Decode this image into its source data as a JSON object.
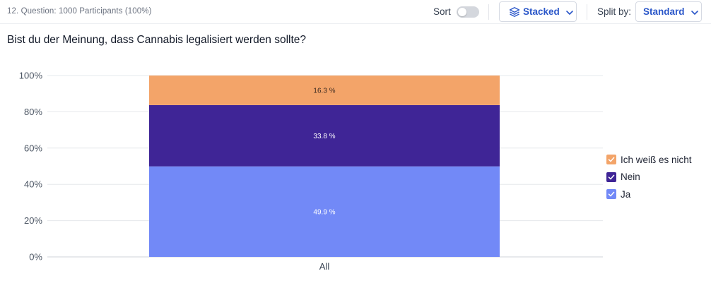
{
  "header": {
    "meta": "12. Question: 1000 Participants (100%)",
    "sort_label": "Sort",
    "chart_type_label": "Stacked",
    "split_by_label": "Split by:",
    "split_by_value": "Standard"
  },
  "colors": {
    "ich_weiss_es_nicht": "#f3a469",
    "nein": "#3f2596",
    "ja": "#7289f7",
    "accent": "#2b57c9"
  },
  "chart_data": {
    "type": "bar",
    "stacked": true,
    "title": "Bist du der Meinung, dass Cannabis legalisiert werden sollte?",
    "categories": [
      "All"
    ],
    "series": [
      {
        "name": "Ja",
        "values": [
          49.9
        ],
        "color": "#7289f7"
      },
      {
        "name": "Nein",
        "values": [
          33.8
        ],
        "color": "#3f2596"
      },
      {
        "name": "Ich weiß es nicht",
        "values": [
          16.3
        ],
        "color": "#f3a469"
      }
    ],
    "data_labels": [
      "49.9 %",
      "33.8 %",
      "16.3 %"
    ],
    "y_ticks": [
      "0%",
      "20%",
      "40%",
      "60%",
      "80%",
      "100%"
    ],
    "ylim": [
      0,
      100
    ],
    "grid": true,
    "legend": "right",
    "legend_order": [
      "Ich weiß es nicht",
      "Nein",
      "Ja"
    ]
  }
}
